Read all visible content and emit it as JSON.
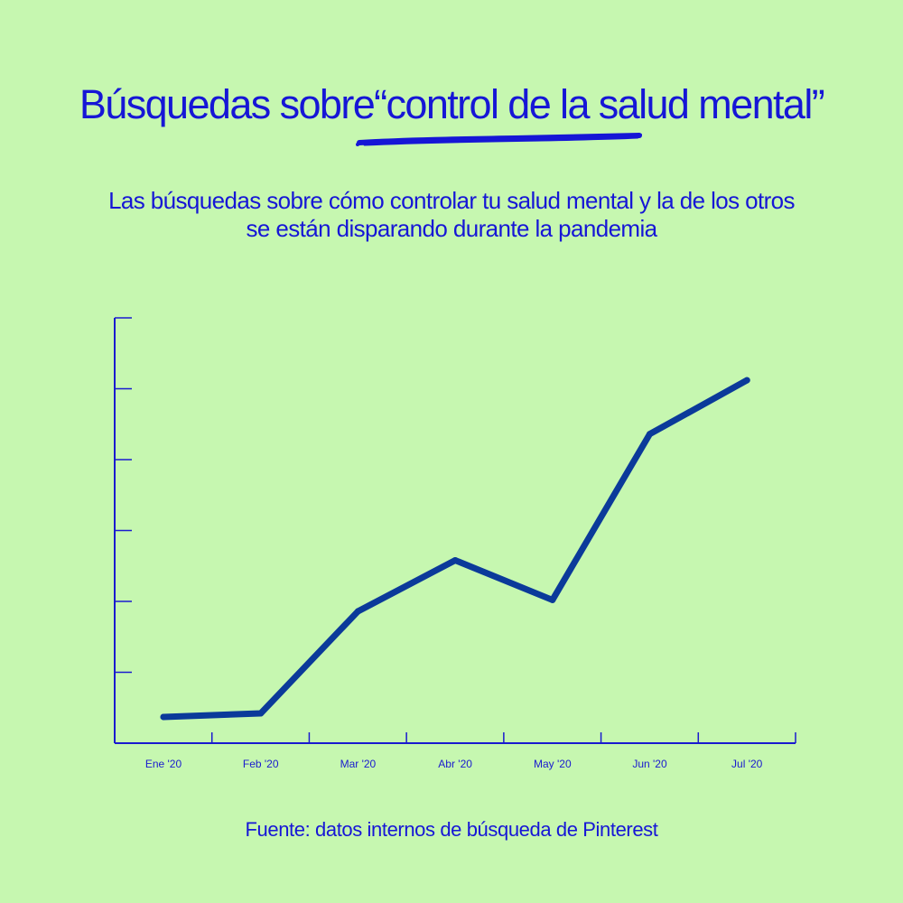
{
  "page": {
    "title": "Búsquedas sobre“control de la salud mental”",
    "subtitle_lines": [
      "Las búsquedas sobre cómo controlar tu salud mental y la de los otros",
      "se están disparando durante la pandemia"
    ],
    "source": "Fuente: datos internos de búsqueda de Pinterest"
  },
  "colors": {
    "background": "#c6f7b0",
    "text": "#1616d6",
    "axis": "#1a1acf",
    "line": "#0b3a9a"
  },
  "chart_data": {
    "type": "line",
    "categories": [
      "Ene '20",
      "Feb '20",
      "Mar '20",
      "Abr '20",
      "May '20",
      "Jun '20",
      "Jul '20"
    ],
    "series": [
      {
        "values": [
          0.37,
          0.42,
          1.86,
          2.58,
          2.02,
          4.36,
          5.12
        ]
      }
    ],
    "ylim": [
      0,
      6
    ],
    "y_tick_count": 7,
    "y_tick_labels": false,
    "grid": false,
    "legend": "none"
  }
}
